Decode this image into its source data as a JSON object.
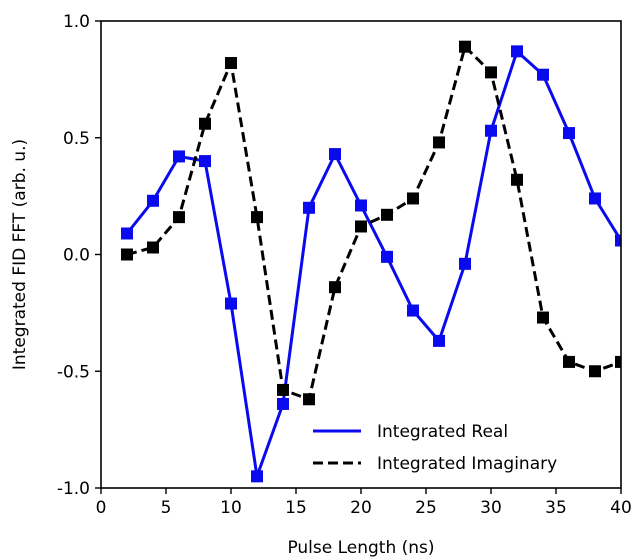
{
  "chart_data": {
    "type": "line",
    "title": "",
    "xlabel": "Pulse Length (ns)",
    "ylabel": "Integrated FID FFT (arb. u.)",
    "xlim": [
      0,
      40
    ],
    "ylim": [
      -1.0,
      1.0
    ],
    "xticks": [
      0,
      5,
      10,
      15,
      20,
      25,
      30,
      35,
      40
    ],
    "xtick_labels": [
      "0",
      "5",
      "10",
      "15",
      "20",
      "25",
      "30",
      "35",
      "40"
    ],
    "yticks": [
      -1.0,
      -0.5,
      0.0,
      0.5,
      1.0
    ],
    "ytick_labels": [
      "-1.0",
      "-0.5",
      "0.0",
      "0.5",
      "1.0"
    ],
    "grid": false,
    "legend_position": "bottom-right",
    "series": [
      {
        "name": "Integrated Real",
        "color": "#0a0aef",
        "line_style": "solid",
        "marker": "square",
        "x": [
          2,
          4,
          6,
          8,
          10,
          12,
          14,
          16,
          18,
          20,
          22,
          24,
          26,
          28,
          30,
          32,
          34,
          36,
          38,
          40
        ],
        "y": [
          0.09,
          0.23,
          0.42,
          0.4,
          -0.21,
          -0.95,
          -0.64,
          0.2,
          0.43,
          0.21,
          -0.01,
          -0.24,
          -0.37,
          -0.04,
          0.53,
          0.87,
          0.77,
          0.52,
          0.24,
          0.06
        ]
      },
      {
        "name": "Integrated Imaginary",
        "color": "#000000",
        "line_style": "dashed",
        "marker": "square",
        "x": [
          2,
          4,
          6,
          8,
          10,
          12,
          14,
          16,
          18,
          20,
          22,
          24,
          26,
          28,
          30,
          32,
          34,
          36,
          38,
          40
        ],
        "y": [
          0.0,
          0.03,
          0.16,
          0.56,
          0.82,
          0.16,
          -0.58,
          -0.62,
          -0.14,
          0.12,
          0.17,
          0.24,
          0.48,
          0.89,
          0.78,
          0.32,
          -0.27,
          -0.46,
          -0.5,
          -0.46
        ]
      }
    ]
  }
}
